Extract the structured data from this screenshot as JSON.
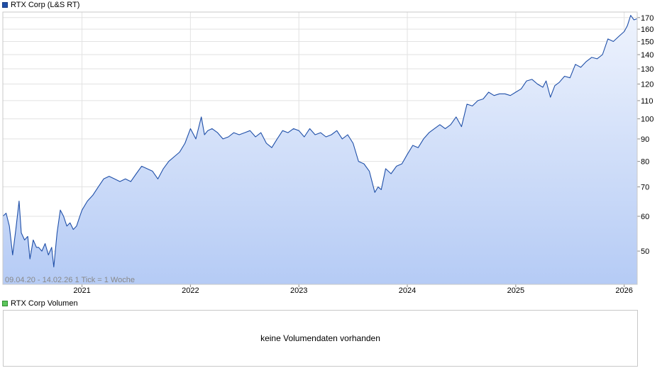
{
  "legend": {
    "price_label": "RTX Corp (L&S RT)",
    "volume_label": "RTX Corp Volumen",
    "price_color": "#1f4fa8",
    "volume_color": "#5cc65c"
  },
  "range_label": "09.04.20 - 14.02.26",
  "tick_label": "1 Tick = 1 Woche",
  "volume_message": "keine Volumendaten vorhanden",
  "chart_data": {
    "type": "area",
    "title": "RTX Corp (L&S RT)",
    "xlabel": "",
    "ylabel": "",
    "y_scale": "log",
    "ylim": [
      42,
      175
    ],
    "xlim": [
      2020.27,
      2026.12
    ],
    "x_tick_labels": [
      "2021",
      "2022",
      "2023",
      "2024",
      "2025",
      "2026"
    ],
    "x_tick_values": [
      2021,
      2022,
      2023,
      2024,
      2025,
      2026
    ],
    "y_tick_labels": [
      "170",
      "160",
      "150",
      "140",
      "130",
      "120",
      "110",
      "100",
      "90",
      "80",
      "70",
      "60",
      "50"
    ],
    "y_tick_values": [
      170,
      160,
      150,
      140,
      130,
      120,
      110,
      100,
      90,
      80,
      70,
      60,
      50
    ],
    "grid": true,
    "line_color": "#1f4fa8",
    "fill_top_color": "#eef3fd",
    "fill_bottom_color": "#b5cbf5",
    "series": [
      {
        "name": "RTX Corp (L&S RT)",
        "x": [
          2020.27,
          2020.3,
          2020.33,
          2020.36,
          2020.39,
          2020.42,
          2020.44,
          2020.47,
          2020.5,
          2020.52,
          2020.55,
          2020.58,
          2020.6,
          2020.63,
          2020.66,
          2020.69,
          2020.72,
          2020.74,
          2020.77,
          2020.8,
          2020.83,
          2020.86,
          2020.89,
          2020.92,
          2020.95,
          2020.98,
          2021.0,
          2021.05,
          2021.1,
          2021.15,
          2021.2,
          2021.25,
          2021.3,
          2021.35,
          2021.4,
          2021.45,
          2021.5,
          2021.55,
          2021.6,
          2021.65,
          2021.7,
          2021.75,
          2021.8,
          2021.85,
          2021.9,
          2021.95,
          2022.0,
          2022.05,
          2022.1,
          2022.13,
          2022.16,
          2022.2,
          2022.25,
          2022.3,
          2022.35,
          2022.4,
          2022.45,
          2022.5,
          2022.55,
          2022.6,
          2022.65,
          2022.7,
          2022.75,
          2022.8,
          2022.85,
          2022.9,
          2022.95,
          2023.0,
          2023.05,
          2023.1,
          2023.15,
          2023.2,
          2023.25,
          2023.3,
          2023.35,
          2023.4,
          2023.45,
          2023.5,
          2023.55,
          2023.6,
          2023.65,
          2023.7,
          2023.73,
          2023.76,
          2023.8,
          2023.85,
          2023.9,
          2023.95,
          2024.0,
          2024.05,
          2024.1,
          2024.15,
          2024.2,
          2024.25,
          2024.3,
          2024.35,
          2024.4,
          2024.45,
          2024.5,
          2024.55,
          2024.6,
          2024.65,
          2024.7,
          2024.75,
          2024.8,
          2024.85,
          2024.9,
          2024.95,
          2025.0,
          2025.05,
          2025.1,
          2025.15,
          2025.2,
          2025.25,
          2025.28,
          2025.32,
          2025.36,
          2025.4,
          2025.45,
          2025.5,
          2025.55,
          2025.6,
          2025.65,
          2025.7,
          2025.75,
          2025.8,
          2025.85,
          2025.9,
          2025.95,
          2026.0,
          2026.03,
          2026.06,
          2026.09,
          2026.12
        ],
        "values": [
          60,
          61,
          57,
          49,
          56,
          65,
          55,
          53,
          54,
          48,
          53,
          51,
          51,
          50,
          52,
          49,
          51,
          46,
          55,
          62,
          60,
          57,
          58,
          56,
          57,
          60,
          62,
          65,
          67,
          70,
          73,
          74,
          73,
          72,
          73,
          72,
          75,
          78,
          77,
          76,
          73,
          77,
          80,
          82,
          84,
          88,
          95,
          90,
          101,
          92,
          94,
          95,
          93,
          90,
          91,
          93,
          92,
          93,
          94,
          91,
          93,
          88,
          86,
          90,
          94,
          93,
          95,
          94,
          91,
          95,
          92,
          93,
          91,
          92,
          94,
          90,
          92,
          88,
          80,
          79,
          76,
          68,
          70,
          69,
          77,
          75,
          78,
          79,
          83,
          87,
          86,
          90,
          93,
          95,
          97,
          95,
          97,
          101,
          96,
          108,
          107,
          110,
          111,
          115,
          113,
          114,
          114,
          113,
          115,
          117,
          122,
          123,
          120,
          118,
          122,
          112,
          119,
          121,
          125,
          124,
          133,
          131,
          135,
          138,
          137,
          140,
          152,
          150,
          154,
          158,
          163,
          172,
          168,
          169
        ]
      }
    ]
  }
}
